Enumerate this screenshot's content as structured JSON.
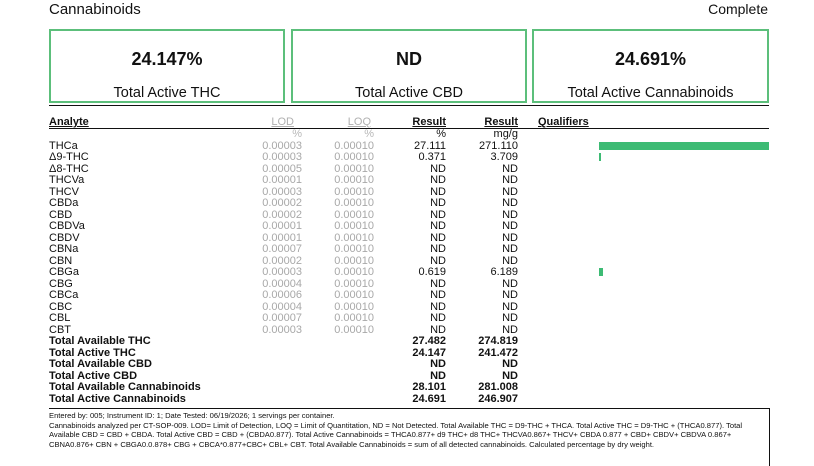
{
  "section_title": "Cannabinoids",
  "status": "Complete",
  "cards": [
    {
      "value": "24.147%",
      "label": "Total Active THC"
    },
    {
      "value": "ND",
      "label": "Total Active CBD"
    },
    {
      "value": "24.691%",
      "label": "Total Active Cannabinoids"
    }
  ],
  "headers": {
    "analyte": "Analyte",
    "lod": "LOD",
    "loq": "LOQ",
    "result_pct": "Result",
    "result_mg": "Result",
    "qualifiers": "Qualifiers"
  },
  "units": {
    "lod": "%",
    "loq": "%",
    "pct": "%",
    "mg": "mg/g"
  },
  "analytes": [
    {
      "name": "THCa",
      "lod": "0.00003",
      "loq": "0.00010",
      "pct": "27.111",
      "mg": "271.110",
      "bar": 0.75
    },
    {
      "name": "Δ9-THC",
      "lod": "0.00003",
      "loq": "0.00010",
      "pct": "0.371",
      "mg": "3.709",
      "bar": 0.01
    },
    {
      "name": "Δ8-THC",
      "lod": "0.00005",
      "loq": "0.00010",
      "pct": "ND",
      "mg": "ND"
    },
    {
      "name": "THCVa",
      "lod": "0.00001",
      "loq": "0.00010",
      "pct": "ND",
      "mg": "ND"
    },
    {
      "name": "THCV",
      "lod": "0.00003",
      "loq": "0.00010",
      "pct": "ND",
      "mg": "ND"
    },
    {
      "name": "CBDa",
      "lod": "0.00002",
      "loq": "0.00010",
      "pct": "ND",
      "mg": "ND"
    },
    {
      "name": "CBD",
      "lod": "0.00002",
      "loq": "0.00010",
      "pct": "ND",
      "mg": "ND"
    },
    {
      "name": "CBDVa",
      "lod": "0.00001",
      "loq": "0.00010",
      "pct": "ND",
      "mg": "ND"
    },
    {
      "name": "CBDV",
      "lod": "0.00001",
      "loq": "0.00010",
      "pct": "ND",
      "mg": "ND"
    },
    {
      "name": "CBNa",
      "lod": "0.00007",
      "loq": "0.00010",
      "pct": "ND",
      "mg": "ND"
    },
    {
      "name": "CBN",
      "lod": "0.00002",
      "loq": "0.00010",
      "pct": "ND",
      "mg": "ND"
    },
    {
      "name": "CBGa",
      "lod": "0.00003",
      "loq": "0.00010",
      "pct": "0.619",
      "mg": "6.189",
      "bar": 0.017
    },
    {
      "name": "CBG",
      "lod": "0.00004",
      "loq": "0.00010",
      "pct": "ND",
      "mg": "ND"
    },
    {
      "name": "CBCa",
      "lod": "0.00006",
      "loq": "0.00010",
      "pct": "ND",
      "mg": "ND"
    },
    {
      "name": "CBC",
      "lod": "0.00004",
      "loq": "0.00010",
      "pct": "ND",
      "mg": "ND"
    },
    {
      "name": "CBL",
      "lod": "0.00007",
      "loq": "0.00010",
      "pct": "ND",
      "mg": "ND"
    },
    {
      "name": "CBT",
      "lod": "0.00003",
      "loq": "0.00010",
      "pct": "ND",
      "mg": "ND"
    }
  ],
  "totals": [
    {
      "name": "Total Available THC",
      "pct": "27.482",
      "mg": "274.819"
    },
    {
      "name": "Total Active THC",
      "pct": "24.147",
      "mg": "241.472"
    },
    {
      "name": "Total Available CBD",
      "pct": "ND",
      "mg": "ND"
    },
    {
      "name": "Total Active CBD",
      "pct": "ND",
      "mg": "ND"
    },
    {
      "name": "Total Available Cannabinoids",
      "pct": "28.101",
      "mg": "281.008"
    },
    {
      "name": "Total Active Cannabinoids",
      "pct": "24.691",
      "mg": "246.907"
    }
  ],
  "footer_line1": "Entered by: 005; Instrument ID: 1; Date Tested: 06/19/2026; 1 servings per container.",
  "footer_line2": "Cannabinoids analyzed per CT-SOP-009. LOD= Limit of Detection, LOQ = Limit of Quantitation, ND = Not Detected. Total Available THC = D9-THC + THCA. Total Active THC = D9-THC + (THCA0.877). Total Available CBD = CBD + CBDA. Total Active CBD = CBD + (CBDA0.877). Total Active Cannabinoids = THCA0.877+ d9 THC+ d8 THC+ THCVA0.867+ THCV+ CBDA 0.877 + CBD+ CBDV+ CBDVA 0.867+ CBNA0.876+ CBN + CBGA0.0.878+ CBG + CBCA*0.877+CBC+ CBL+ CBT. Total Available Cannabinoids = sum of all detected cannabinoids. Calculated percentage by dry weight.",
  "colors": {
    "accent": "#3dbb74",
    "card_border": "#5cbf7b",
    "muted": "#a8a8a8"
  }
}
